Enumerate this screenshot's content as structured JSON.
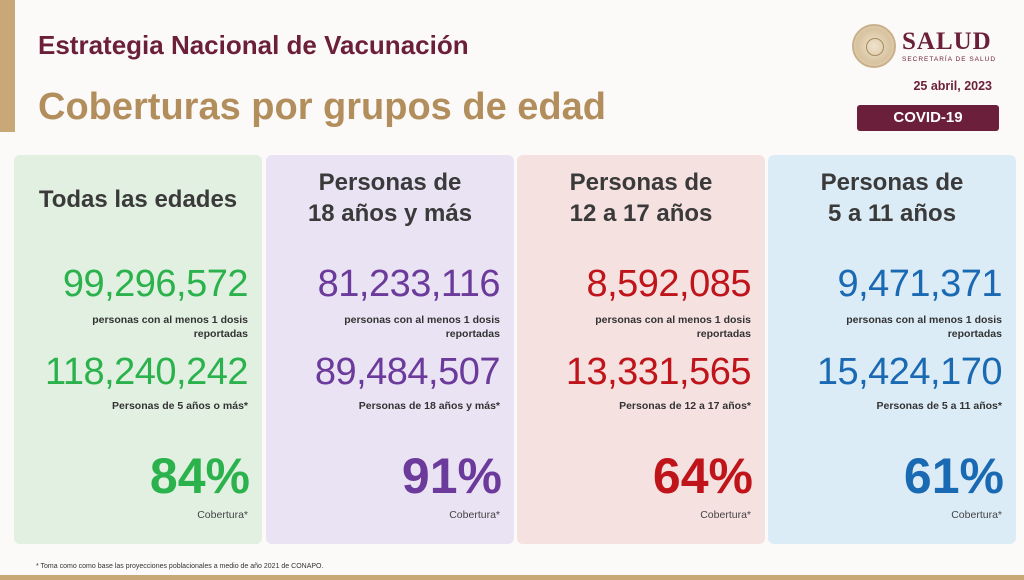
{
  "header": {
    "title": "Estrategia Nacional de Vacunación",
    "subtitle": "Coberturas por grupos de edad",
    "logo_name": "SALUD",
    "logo_sub": "SECRETARÍA DE SALUD",
    "date": "25 abril, 2023",
    "badge": "COVID-19"
  },
  "colors": {
    "maroon": "#6b1f3a",
    "gold": "#b38e5d",
    "green": "#2bb24c",
    "purple": "#6b3a9a",
    "red": "#c0141b",
    "blue": "#1a69b3"
  },
  "cards": [
    {
      "head1": "Todas las edades",
      "head2": "",
      "vaccinated": "99,296,572",
      "vaccinated_label": "personas con al menos 1 dosis reportadas",
      "population": "118,240,242",
      "population_label": "Personas de 5 años o más*",
      "coverage": "84%",
      "coverage_label": "Cobertura*"
    },
    {
      "head1": "Personas de",
      "head2": "18 años y más",
      "vaccinated": "81,233,116",
      "vaccinated_label": "personas con al menos 1 dosis reportadas",
      "population": "89,484,507",
      "population_label": "Personas de 18 años y más*",
      "coverage": "91%",
      "coverage_label": "Cobertura*"
    },
    {
      "head1": "Personas de",
      "head2": "12 a 17 años",
      "vaccinated": "8,592,085",
      "vaccinated_label": "personas con al menos 1 dosis reportadas",
      "population": "13,331,565",
      "population_label": "Personas de 12 a 17 años*",
      "coverage": "64%",
      "coverage_label": "Cobertura*"
    },
    {
      "head1": "Personas de",
      "head2": "5 a 11 años",
      "vaccinated": "9,471,371",
      "vaccinated_label": "personas con al menos 1 dosis reportadas",
      "population": "15,424,170",
      "population_label": "Personas de 5 a 11 años*",
      "coverage": "61%",
      "coverage_label": "Cobertura*"
    }
  ],
  "footnote": "* Toma como como base las proyecciones poblacionales a medio de año 2021 de CONAPO."
}
